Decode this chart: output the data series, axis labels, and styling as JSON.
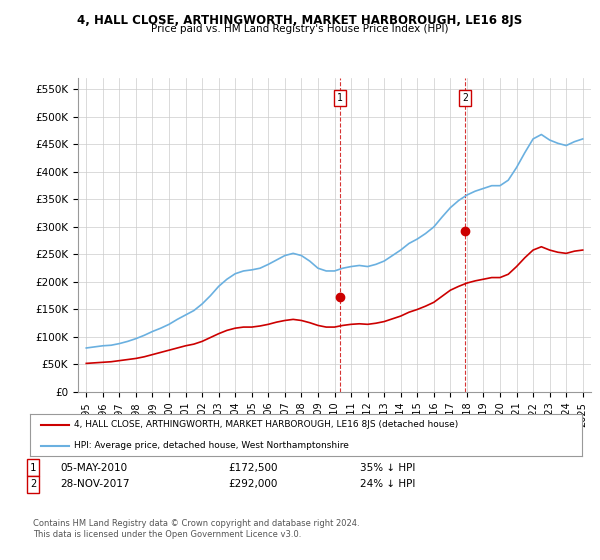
{
  "title": "4, HALL CLOSE, ARTHINGWORTH, MARKET HARBOROUGH, LE16 8JS",
  "subtitle": "Price paid vs. HM Land Registry's House Price Index (HPI)",
  "ylabel_ticks": [
    "£0",
    "£50K",
    "£100K",
    "£150K",
    "£200K",
    "£250K",
    "£300K",
    "£350K",
    "£400K",
    "£450K",
    "£500K",
    "£550K"
  ],
  "ytick_values": [
    0,
    50000,
    100000,
    150000,
    200000,
    250000,
    300000,
    350000,
    400000,
    450000,
    500000,
    550000
  ],
  "ylim": [
    0,
    570000
  ],
  "hpi_color": "#6ab0e0",
  "price_color": "#cc0000",
  "dashed_line_color": "#cc0000",
  "marker1_date_x": 2010.34,
  "marker2_date_x": 2017.9,
  "sale1": {
    "date": "05-MAY-2010",
    "price": "£172,500",
    "pct": "35% ↓ HPI",
    "price_val": 172500
  },
  "sale2": {
    "date": "28-NOV-2017",
    "price": "£292,000",
    "pct": "24% ↓ HPI",
    "price_val": 292000
  },
  "legend_label_red": "4, HALL CLOSE, ARTHINGWORTH, MARKET HARBOROUGH, LE16 8JS (detached house)",
  "legend_label_blue": "HPI: Average price, detached house, West Northamptonshire",
  "footnote": "Contains HM Land Registry data © Crown copyright and database right 2024.\nThis data is licensed under the Open Government Licence v3.0.",
  "hpi_x": [
    1995,
    1995.5,
    1996,
    1996.5,
    1997,
    1997.5,
    1998,
    1998.5,
    1999,
    1999.5,
    2000,
    2000.5,
    2001,
    2001.5,
    2002,
    2002.5,
    2003,
    2003.5,
    2004,
    2004.5,
    2005,
    2005.5,
    2006,
    2006.5,
    2007,
    2007.5,
    2008,
    2008.5,
    2009,
    2009.5,
    2010,
    2010.5,
    2011,
    2011.5,
    2012,
    2012.5,
    2013,
    2013.5,
    2014,
    2014.5,
    2015,
    2015.5,
    2016,
    2016.5,
    2017,
    2017.5,
    2018,
    2018.5,
    2019,
    2019.5,
    2020,
    2020.5,
    2021,
    2021.5,
    2022,
    2022.5,
    2023,
    2023.5,
    2024,
    2024.5,
    2025
  ],
  "hpi_y": [
    80000,
    82000,
    84000,
    85000,
    88000,
    92000,
    97000,
    103000,
    110000,
    116000,
    123000,
    132000,
    140000,
    148000,
    160000,
    175000,
    192000,
    205000,
    215000,
    220000,
    222000,
    225000,
    232000,
    240000,
    248000,
    252000,
    248000,
    238000,
    225000,
    220000,
    220000,
    225000,
    228000,
    230000,
    228000,
    232000,
    238000,
    248000,
    258000,
    270000,
    278000,
    288000,
    300000,
    318000,
    335000,
    348000,
    358000,
    365000,
    370000,
    375000,
    375000,
    385000,
    408000,
    435000,
    460000,
    468000,
    458000,
    452000,
    448000,
    455000,
    460000
  ],
  "price_x": [
    1995,
    1995.5,
    1996,
    1996.5,
    1997,
    1997.5,
    1998,
    1998.5,
    1999,
    1999.5,
    2000,
    2000.5,
    2001,
    2001.5,
    2002,
    2002.5,
    2003,
    2003.5,
    2004,
    2004.5,
    2005,
    2005.5,
    2006,
    2006.5,
    2007,
    2007.5,
    2008,
    2008.5,
    2009,
    2009.5,
    2010,
    2010.5,
    2011,
    2011.5,
    2012,
    2012.5,
    2013,
    2013.5,
    2014,
    2014.5,
    2015,
    2015.5,
    2016,
    2016.5,
    2017,
    2017.5,
    2018,
    2018.5,
    2019,
    2019.5,
    2020,
    2020.5,
    2021,
    2021.5,
    2022,
    2022.5,
    2023,
    2023.5,
    2024,
    2024.5,
    2025
  ],
  "price_y": [
    52000,
    53000,
    54000,
    55000,
    57000,
    59000,
    61000,
    64000,
    68000,
    72000,
    76000,
    80000,
    84000,
    87000,
    92000,
    99000,
    106000,
    112000,
    116000,
    118000,
    118000,
    120000,
    123000,
    127000,
    130000,
    132000,
    130000,
    126000,
    121000,
    118000,
    118000,
    121000,
    123000,
    124000,
    123000,
    125000,
    128000,
    133000,
    138000,
    145000,
    150000,
    156000,
    163000,
    174000,
    185000,
    192000,
    198000,
    202000,
    205000,
    208000,
    208000,
    214000,
    228000,
    244000,
    258000,
    264000,
    258000,
    254000,
    252000,
    256000,
    258000
  ],
  "xtick_years": [
    1995,
    1996,
    1997,
    1998,
    1999,
    2000,
    2001,
    2002,
    2003,
    2004,
    2005,
    2006,
    2007,
    2008,
    2009,
    2010,
    2011,
    2012,
    2013,
    2014,
    2015,
    2016,
    2017,
    2018,
    2019,
    2020,
    2021,
    2022,
    2023,
    2024,
    2025
  ],
  "xlim": [
    1994.5,
    2025.5
  ],
  "bg_color": "#ffffff",
  "grid_color": "#cccccc"
}
